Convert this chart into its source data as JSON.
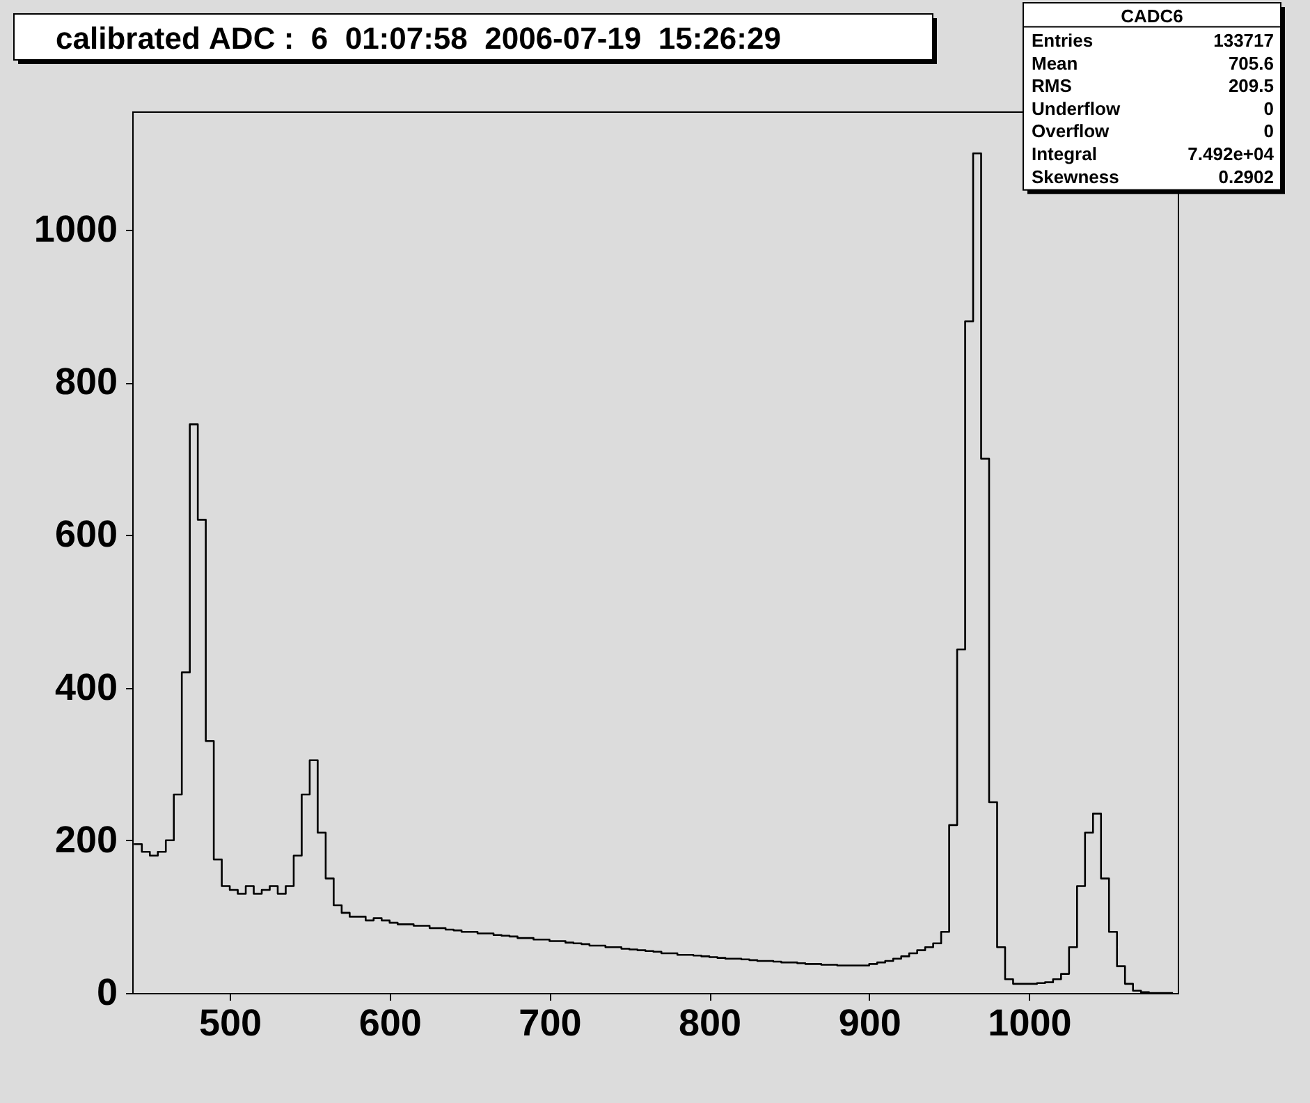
{
  "chart_data": {
    "type": "histogram",
    "title": "calibrated ADC :  6  01:07:58  2006-07-19  15:26:29",
    "bins": [
      440,
      445,
      450,
      455,
      460,
      465,
      470,
      475,
      480,
      485,
      490,
      495,
      500,
      505,
      510,
      515,
      520,
      525,
      530,
      535,
      540,
      545,
      550,
      555,
      560,
      565,
      570,
      575,
      580,
      585,
      590,
      595,
      600,
      605,
      610,
      615,
      620,
      625,
      630,
      635,
      640,
      645,
      650,
      655,
      660,
      665,
      670,
      675,
      680,
      685,
      690,
      695,
      700,
      705,
      710,
      715,
      720,
      725,
      730,
      735,
      740,
      745,
      750,
      755,
      760,
      765,
      770,
      775,
      780,
      785,
      790,
      795,
      800,
      805,
      810,
      815,
      820,
      825,
      830,
      835,
      840,
      845,
      850,
      855,
      860,
      865,
      870,
      875,
      880,
      885,
      890,
      895,
      900,
      905,
      910,
      915,
      920,
      925,
      930,
      935,
      940,
      945,
      950,
      955,
      960,
      965,
      970,
      975,
      980,
      985,
      990,
      995,
      1000,
      1005,
      1010,
      1015,
      1020,
      1025,
      1030,
      1035,
      1040,
      1045,
      1050,
      1055,
      1060,
      1065,
      1070,
      1075,
      1080,
      1085,
      1090
    ],
    "values": [
      195,
      185,
      180,
      185,
      200,
      260,
      420,
      745,
      620,
      330,
      175,
      140,
      135,
      130,
      140,
      130,
      135,
      140,
      130,
      140,
      180,
      260,
      305,
      210,
      150,
      115,
      105,
      100,
      100,
      95,
      98,
      95,
      92,
      90,
      90,
      88,
      88,
      85,
      85,
      83,
      82,
      80,
      80,
      78,
      78,
      76,
      75,
      74,
      72,
      72,
      70,
      70,
      68,
      68,
      66,
      65,
      64,
      62,
      62,
      60,
      60,
      58,
      57,
      56,
      55,
      54,
      52,
      52,
      50,
      50,
      49,
      48,
      47,
      46,
      45,
      45,
      44,
      43,
      42,
      42,
      41,
      40,
      40,
      39,
      38,
      38,
      37,
      37,
      36,
      36,
      36,
      36,
      38,
      40,
      42,
      45,
      48,
      52,
      56,
      60,
      65,
      80,
      220,
      450,
      880,
      1100,
      700,
      250,
      60,
      18,
      12,
      12,
      12,
      13,
      14,
      18,
      25,
      60,
      140,
      210,
      235,
      150,
      80,
      35,
      12,
      3,
      1,
      0,
      0,
      0
    ],
    "color": "#000000",
    "xlim": [
      439,
      1093
    ],
    "xticks": [
      500,
      600,
      700,
      800,
      900,
      1000
    ],
    "ylim": [
      0,
      1155
    ],
    "yticks": [
      0,
      200,
      400,
      600,
      800,
      1000
    ],
    "grid": false,
    "annotations": [
      "CADC6",
      "Entries 133717",
      "Mean 705.6",
      "RMS 209.5",
      "Underflow 0",
      "Overflow 0",
      "Integral 7.492e+04",
      "Skewness 0.2902"
    ]
  }
}
